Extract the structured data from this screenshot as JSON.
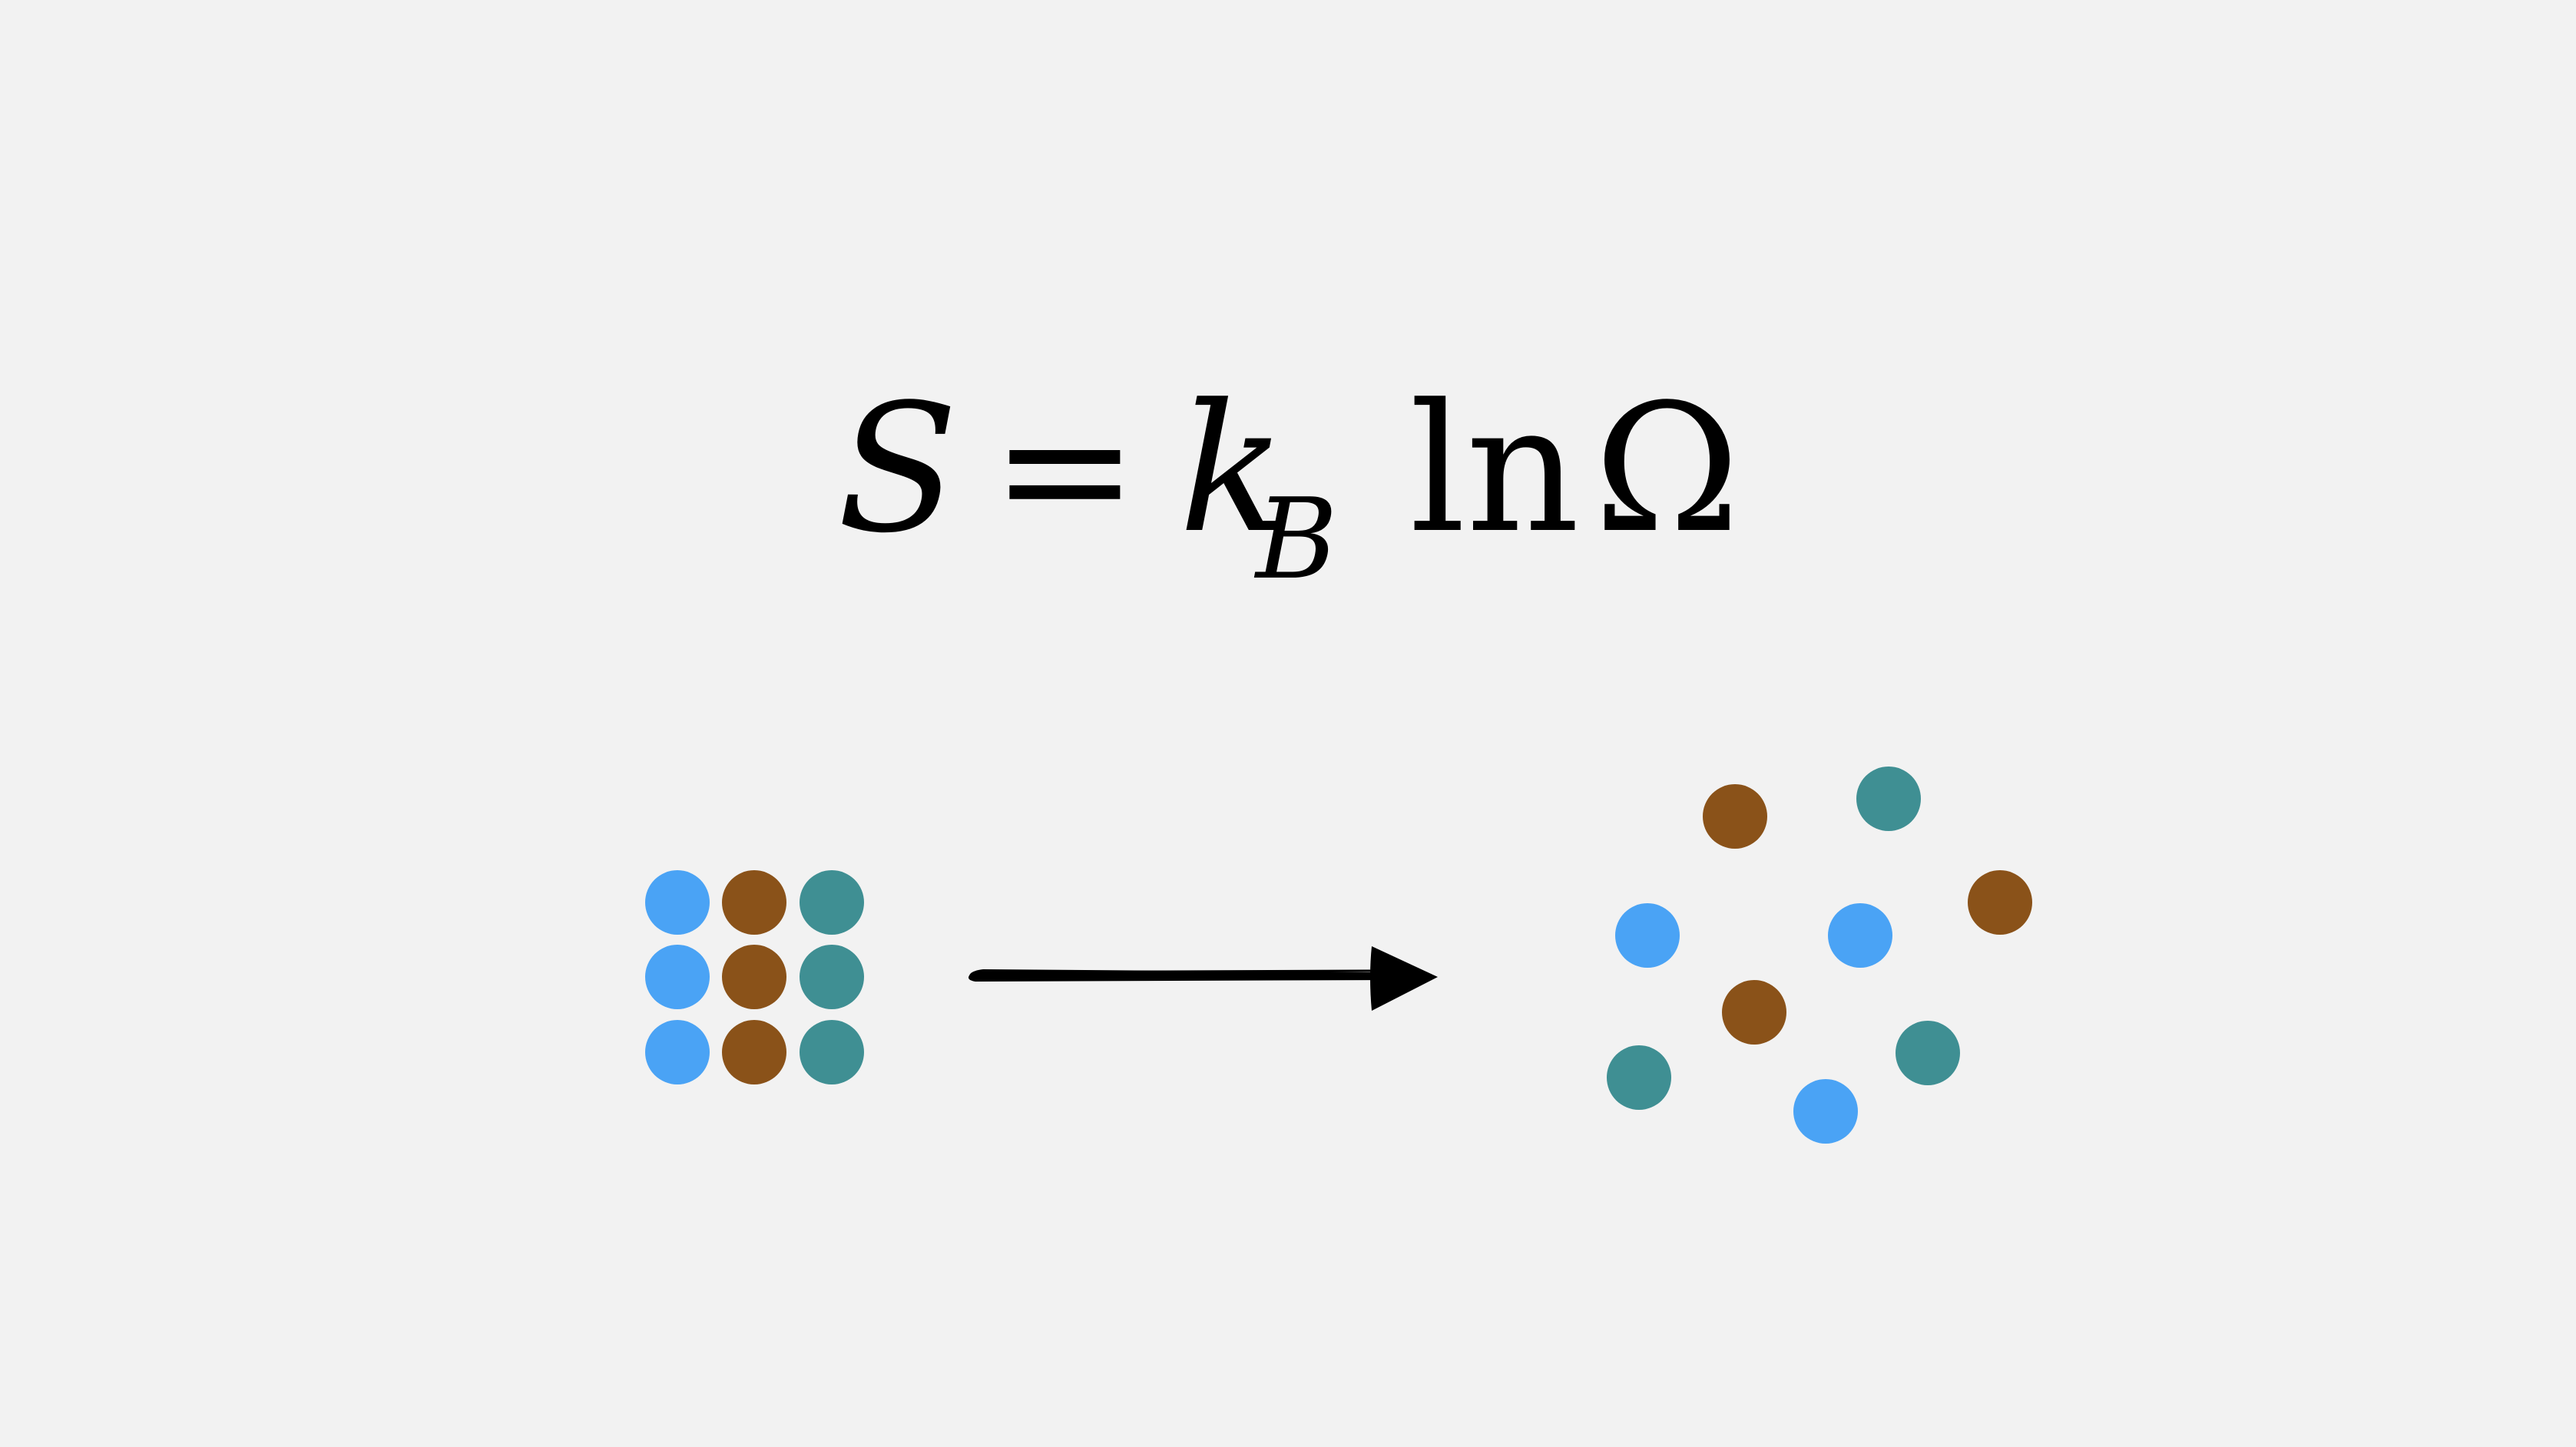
{
  "equation": {
    "lhs": "S",
    "equals": "=",
    "k": "k",
    "sub": "B",
    "ln": "ln",
    "omega": "Ω"
  },
  "colors": {
    "background": "#f2f2f2",
    "blue": "#4aa3f5",
    "brown": "#8a5219",
    "teal": "#3f8f93",
    "arrow": "#000000"
  },
  "ordered_state": {
    "arrangement": "3x3 grid",
    "rows": [
      [
        "blue",
        "brown",
        "teal"
      ],
      [
        "blue",
        "brown",
        "teal"
      ],
      [
        "blue",
        "brown",
        "teal"
      ]
    ]
  },
  "transition": {
    "arrow": "right-arrow"
  },
  "disordered_state": {
    "arrangement": "scattered",
    "particles": [
      "brown",
      "teal",
      "blue",
      "blue",
      "brown",
      "brown",
      "teal",
      "teal",
      "blue"
    ]
  }
}
